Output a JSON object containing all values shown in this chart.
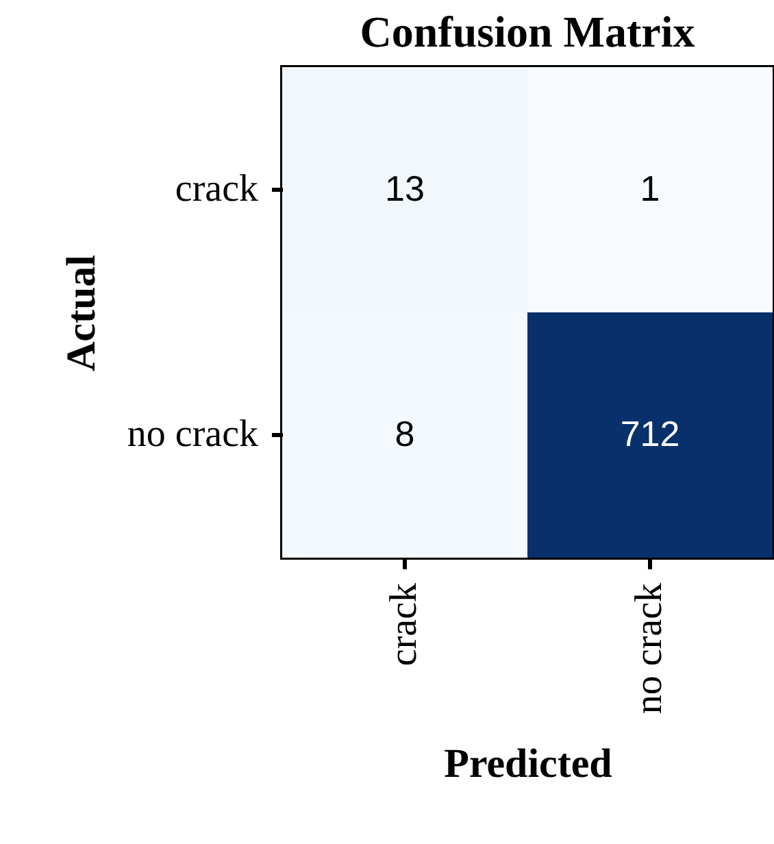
{
  "chart_data": {
    "type": "heatmap",
    "data_labels": true,
    "title": "Confusion Matrix",
    "xlabel": "Predicted",
    "ylabel": "Actual",
    "categories": [
      "crack",
      "no crack"
    ],
    "y_categories": [
      "crack",
      "no crack"
    ],
    "cells": [
      [
        13,
        1
      ],
      [
        8,
        712
      ]
    ]
  }
}
